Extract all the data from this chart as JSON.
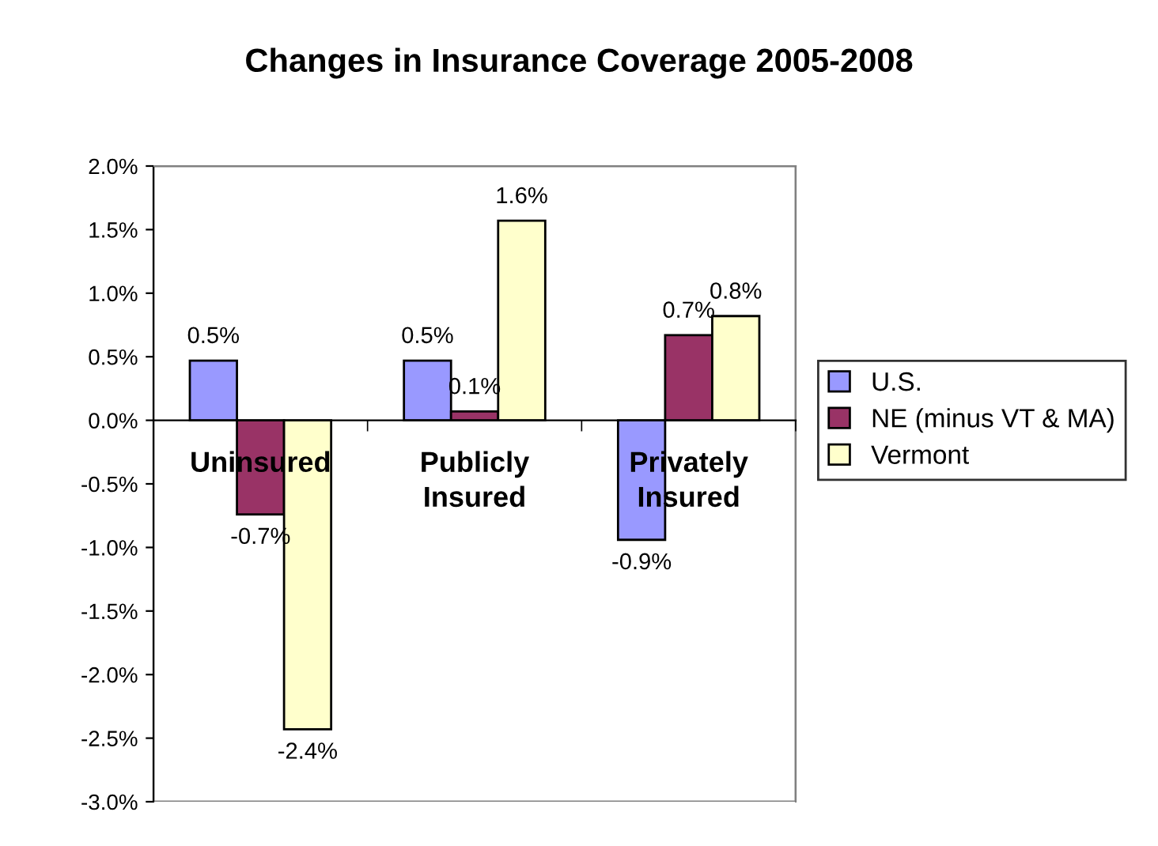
{
  "chart_data": {
    "type": "bar",
    "title": "Changes in Insurance Coverage 2005-2008",
    "categories": [
      "Uninsured",
      "Publicly Insured",
      "Privately Insured"
    ],
    "series": [
      {
        "name": "U.S.",
        "color": "#9999ff",
        "values": [
          0.47,
          0.47,
          -0.94
        ],
        "value_labels": [
          "0.5%",
          "0.5%",
          "-0.9%"
        ]
      },
      {
        "name": "NE (minus VT & MA)",
        "color": "#993366",
        "values": [
          -0.74,
          0.07,
          0.67
        ],
        "value_labels": [
          "-0.7%",
          "0.1%",
          "0.7%"
        ]
      },
      {
        "name": "Vermont",
        "color": "#ffffcc",
        "values": [
          -2.43,
          1.57,
          0.82
        ],
        "value_labels": [
          "-2.4%",
          "1.6%",
          "0.8%"
        ]
      }
    ],
    "ylim": [
      -3.0,
      2.0
    ],
    "yticks": [
      {
        "value": -3.0,
        "label": "-3.0%"
      },
      {
        "value": -2.5,
        "label": "-2.5%"
      },
      {
        "value": -2.0,
        "label": "-2.0%"
      },
      {
        "value": -1.5,
        "label": "-1.5%"
      },
      {
        "value": -1.0,
        "label": "-1.0%"
      },
      {
        "value": -0.5,
        "label": "-0.5%"
      },
      {
        "value": 0.0,
        "label": "0.0%"
      },
      {
        "value": 0.5,
        "label": "0.5%"
      },
      {
        "value": 1.0,
        "label": "1.0%"
      },
      {
        "value": 1.5,
        "label": "1.5%"
      },
      {
        "value": 2.0,
        "label": "2.0%"
      }
    ],
    "grid": false,
    "legend": "right"
  }
}
